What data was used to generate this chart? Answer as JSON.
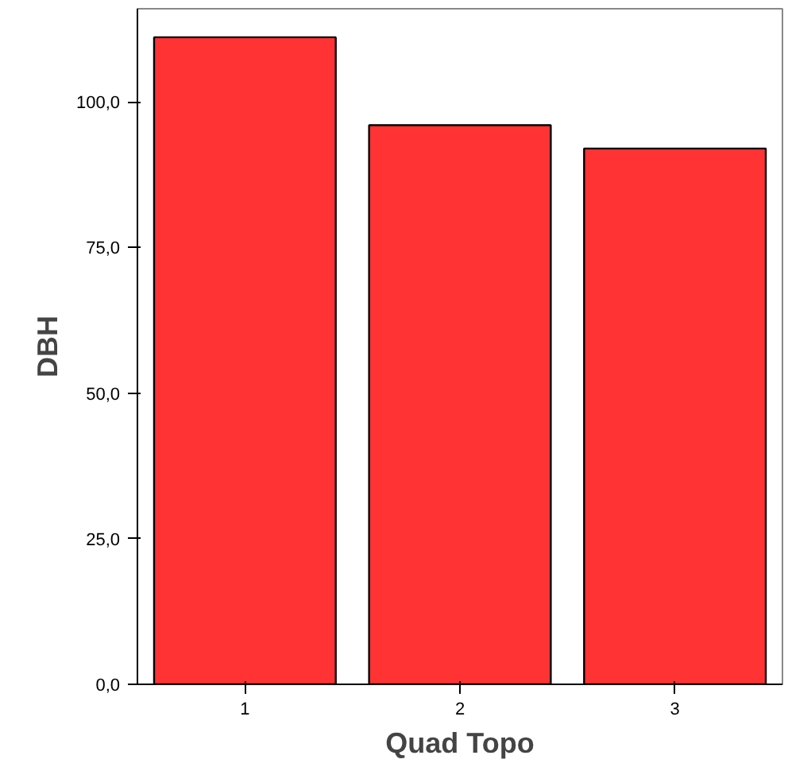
{
  "chart_data": {
    "type": "bar",
    "xlabel": "Quad Topo",
    "ylabel": "DBH",
    "categories": [
      "1",
      "2",
      "3"
    ],
    "values": [
      111.1,
      96.0,
      92.0
    ],
    "color": "#ff3333",
    "ylim": [
      0,
      116
    ],
    "yticks": [
      {
        "value": 0,
        "label": "0,0"
      },
      {
        "value": 25,
        "label": "25,0"
      },
      {
        "value": 50,
        "label": "50,0"
      },
      {
        "value": 75,
        "label": "75,0"
      },
      {
        "value": 100,
        "label": "100,0"
      }
    ],
    "grid": false
  }
}
